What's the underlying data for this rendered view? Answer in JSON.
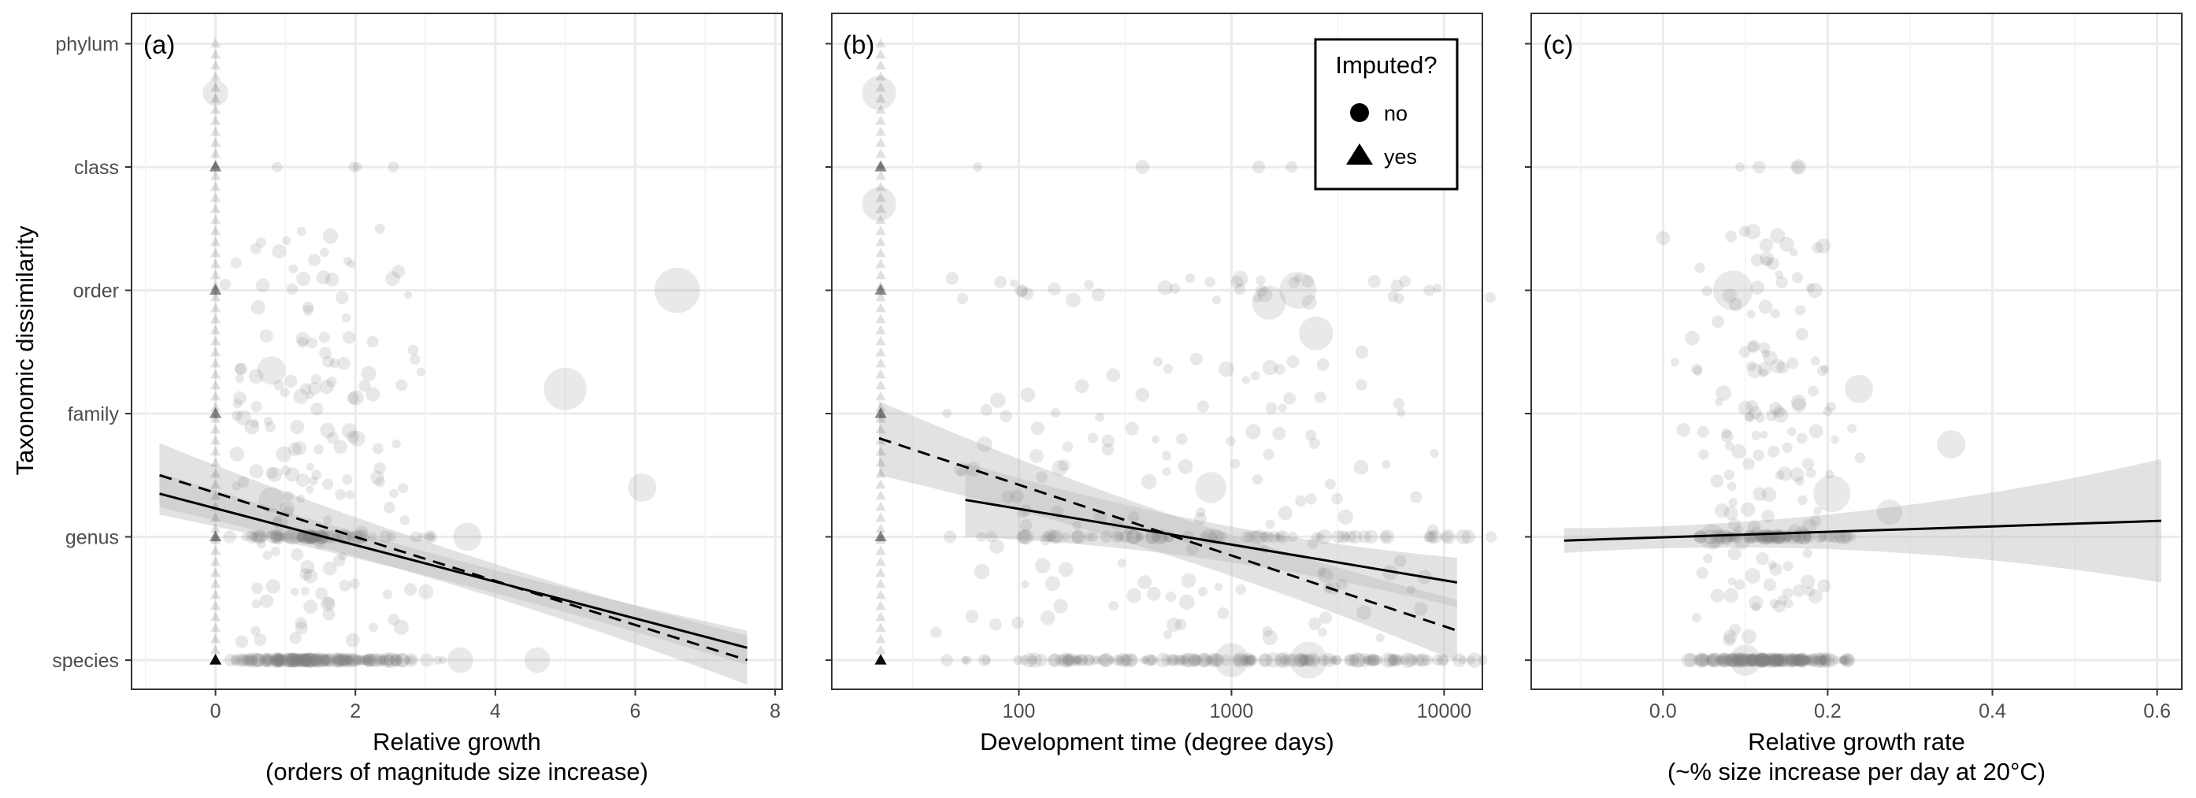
{
  "figure": {
    "ylabel": "Taxonomic dissimilarity",
    "y_categories": [
      "species",
      "genus",
      "family",
      "order",
      "class",
      "phylum"
    ],
    "legend": {
      "title": "Imputed?",
      "items": [
        {
          "label": "no",
          "shape": "circle"
        },
        {
          "label": "yes",
          "shape": "triangle"
        }
      ]
    },
    "colors": {
      "points": "#7f7f7f",
      "points_imputed": "#000000",
      "ribbon": "#bfbfbf",
      "line": "#000000",
      "grid": "#ebebeb",
      "panel_border": "#333333"
    }
  },
  "chart_data": [
    {
      "type": "scatter",
      "panel_tag": "(a)",
      "xlabel": "Relative growth",
      "xlabel_sub": "(orders of magnitude size increase)",
      "ylabel": "Taxonomic dissimilarity",
      "x_scale": "linear",
      "xlim": [
        -1.2,
        8.1
      ],
      "x_ticks": [
        "0",
        "2",
        "4",
        "6",
        "8"
      ],
      "x_tick_values": [
        0,
        2,
        4,
        6,
        8
      ],
      "y_categories": [
        "species",
        "genus",
        "family",
        "order",
        "class",
        "phylum"
      ],
      "grid": true,
      "imputed_x": 0,
      "series": [
        {
          "line": "solid",
          "x": [
            -0.8,
            7.6
          ],
          "y": [
            1.35,
            0.1
          ],
          "ribbon_half_width": [
            0.17,
            0.14
          ]
        },
        {
          "line": "dashed",
          "x": [
            -0.8,
            7.6
          ],
          "y": [
            1.5,
            0.0
          ],
          "ribbon_half_width": [
            0.26,
            0.2
          ]
        }
      ],
      "highlight_points": [
        {
          "x": 6.6,
          "y": 3.0,
          "size": 3.2
        },
        {
          "x": 5.0,
          "y": 2.2,
          "size": 3.0
        },
        {
          "x": 0.8,
          "y": 1.3,
          "size": 1.8
        },
        {
          "x": 3.6,
          "y": 1.0,
          "size": 2.0
        },
        {
          "x": 6.1,
          "y": 1.4,
          "size": 2.0
        },
        {
          "x": 3.5,
          "y": 0.0,
          "size": 1.8
        },
        {
          "x": 4.6,
          "y": 0.0,
          "size": 1.8
        },
        {
          "x": 0.0,
          "y": 4.6,
          "size": 1.8
        },
        {
          "x": 0.8,
          "y": 2.35,
          "size": 2.0
        }
      ]
    },
    {
      "type": "scatter",
      "panel_tag": "(b)",
      "xlabel": "Development time (degree days)",
      "xlabel_sub": "",
      "x_scale": "log",
      "xlim_log10": [
        1.12,
        4.18
      ],
      "imputed_x_log10": 1.35,
      "x_ticks": [
        "100",
        "1000",
        "10000"
      ],
      "x_tick_values": [
        100,
        1000,
        10000
      ],
      "y_categories": [
        "species",
        "genus",
        "family",
        "order",
        "class",
        "phylum"
      ],
      "grid": true,
      "series": [
        {
          "line": "solid",
          "x": [
            56,
            11500
          ],
          "y": [
            1.3,
            0.63
          ],
          "ribbon_half_width": [
            0.3,
            0.2
          ]
        },
        {
          "line": "dashed",
          "x": [
            22,
            11500
          ],
          "y": [
            1.8,
            0.24
          ],
          "ribbon_half_width": [
            0.3,
            0.25
          ]
        }
      ],
      "highlight_points": [
        {
          "x": 1000,
          "y": 0.0,
          "size": 2.4
        },
        {
          "x": 2300,
          "y": 0.0,
          "size": 2.6
        },
        {
          "x": 1500,
          "y": 2.9,
          "size": 2.4
        },
        {
          "x": 2500,
          "y": 2.65,
          "size": 2.4
        },
        {
          "x": 2050,
          "y": 3.0,
          "size": 2.6
        },
        {
          "x": 800,
          "y": 1.4,
          "size": 2.2
        },
        {
          "x": 22,
          "y": 4.6,
          "size": 2.4
        },
        {
          "x": 22,
          "y": 3.7,
          "size": 2.4
        }
      ]
    },
    {
      "type": "scatter",
      "panel_tag": "(c)",
      "xlabel": "Relative growth rate",
      "xlabel_sub": "(~% size increase per day at 20°C)",
      "x_scale": "linear",
      "xlim": [
        -0.16,
        0.63
      ],
      "x_ticks": [
        "0.0",
        "0.2",
        "0.4",
        "0.6"
      ],
      "x_tick_values": [
        0.0,
        0.2,
        0.4,
        0.6
      ],
      "y_categories": [
        "species",
        "genus",
        "family",
        "order",
        "class",
        "phylum"
      ],
      "grid": true,
      "series": [
        {
          "line": "solid",
          "x": [
            -0.12,
            0.605
          ],
          "y": [
            0.97,
            1.13
          ],
          "ribbon_half_width": [
            0.1,
            0.5
          ]
        }
      ],
      "highlight_points": [
        {
          "x": 0.085,
          "y": 3.0,
          "size": 2.8
        },
        {
          "x": 0.205,
          "y": 1.35,
          "size": 2.6
        },
        {
          "x": 0.1,
          "y": 0.0,
          "size": 2.2
        },
        {
          "x": 0.35,
          "y": 1.75,
          "size": 2.0
        },
        {
          "x": 0.238,
          "y": 2.2,
          "size": 2.0
        },
        {
          "x": 0.06,
          "y": 1.0,
          "size": 1.8
        },
        {
          "x": 0.275,
          "y": 1.2,
          "size": 1.8
        }
      ]
    }
  ]
}
